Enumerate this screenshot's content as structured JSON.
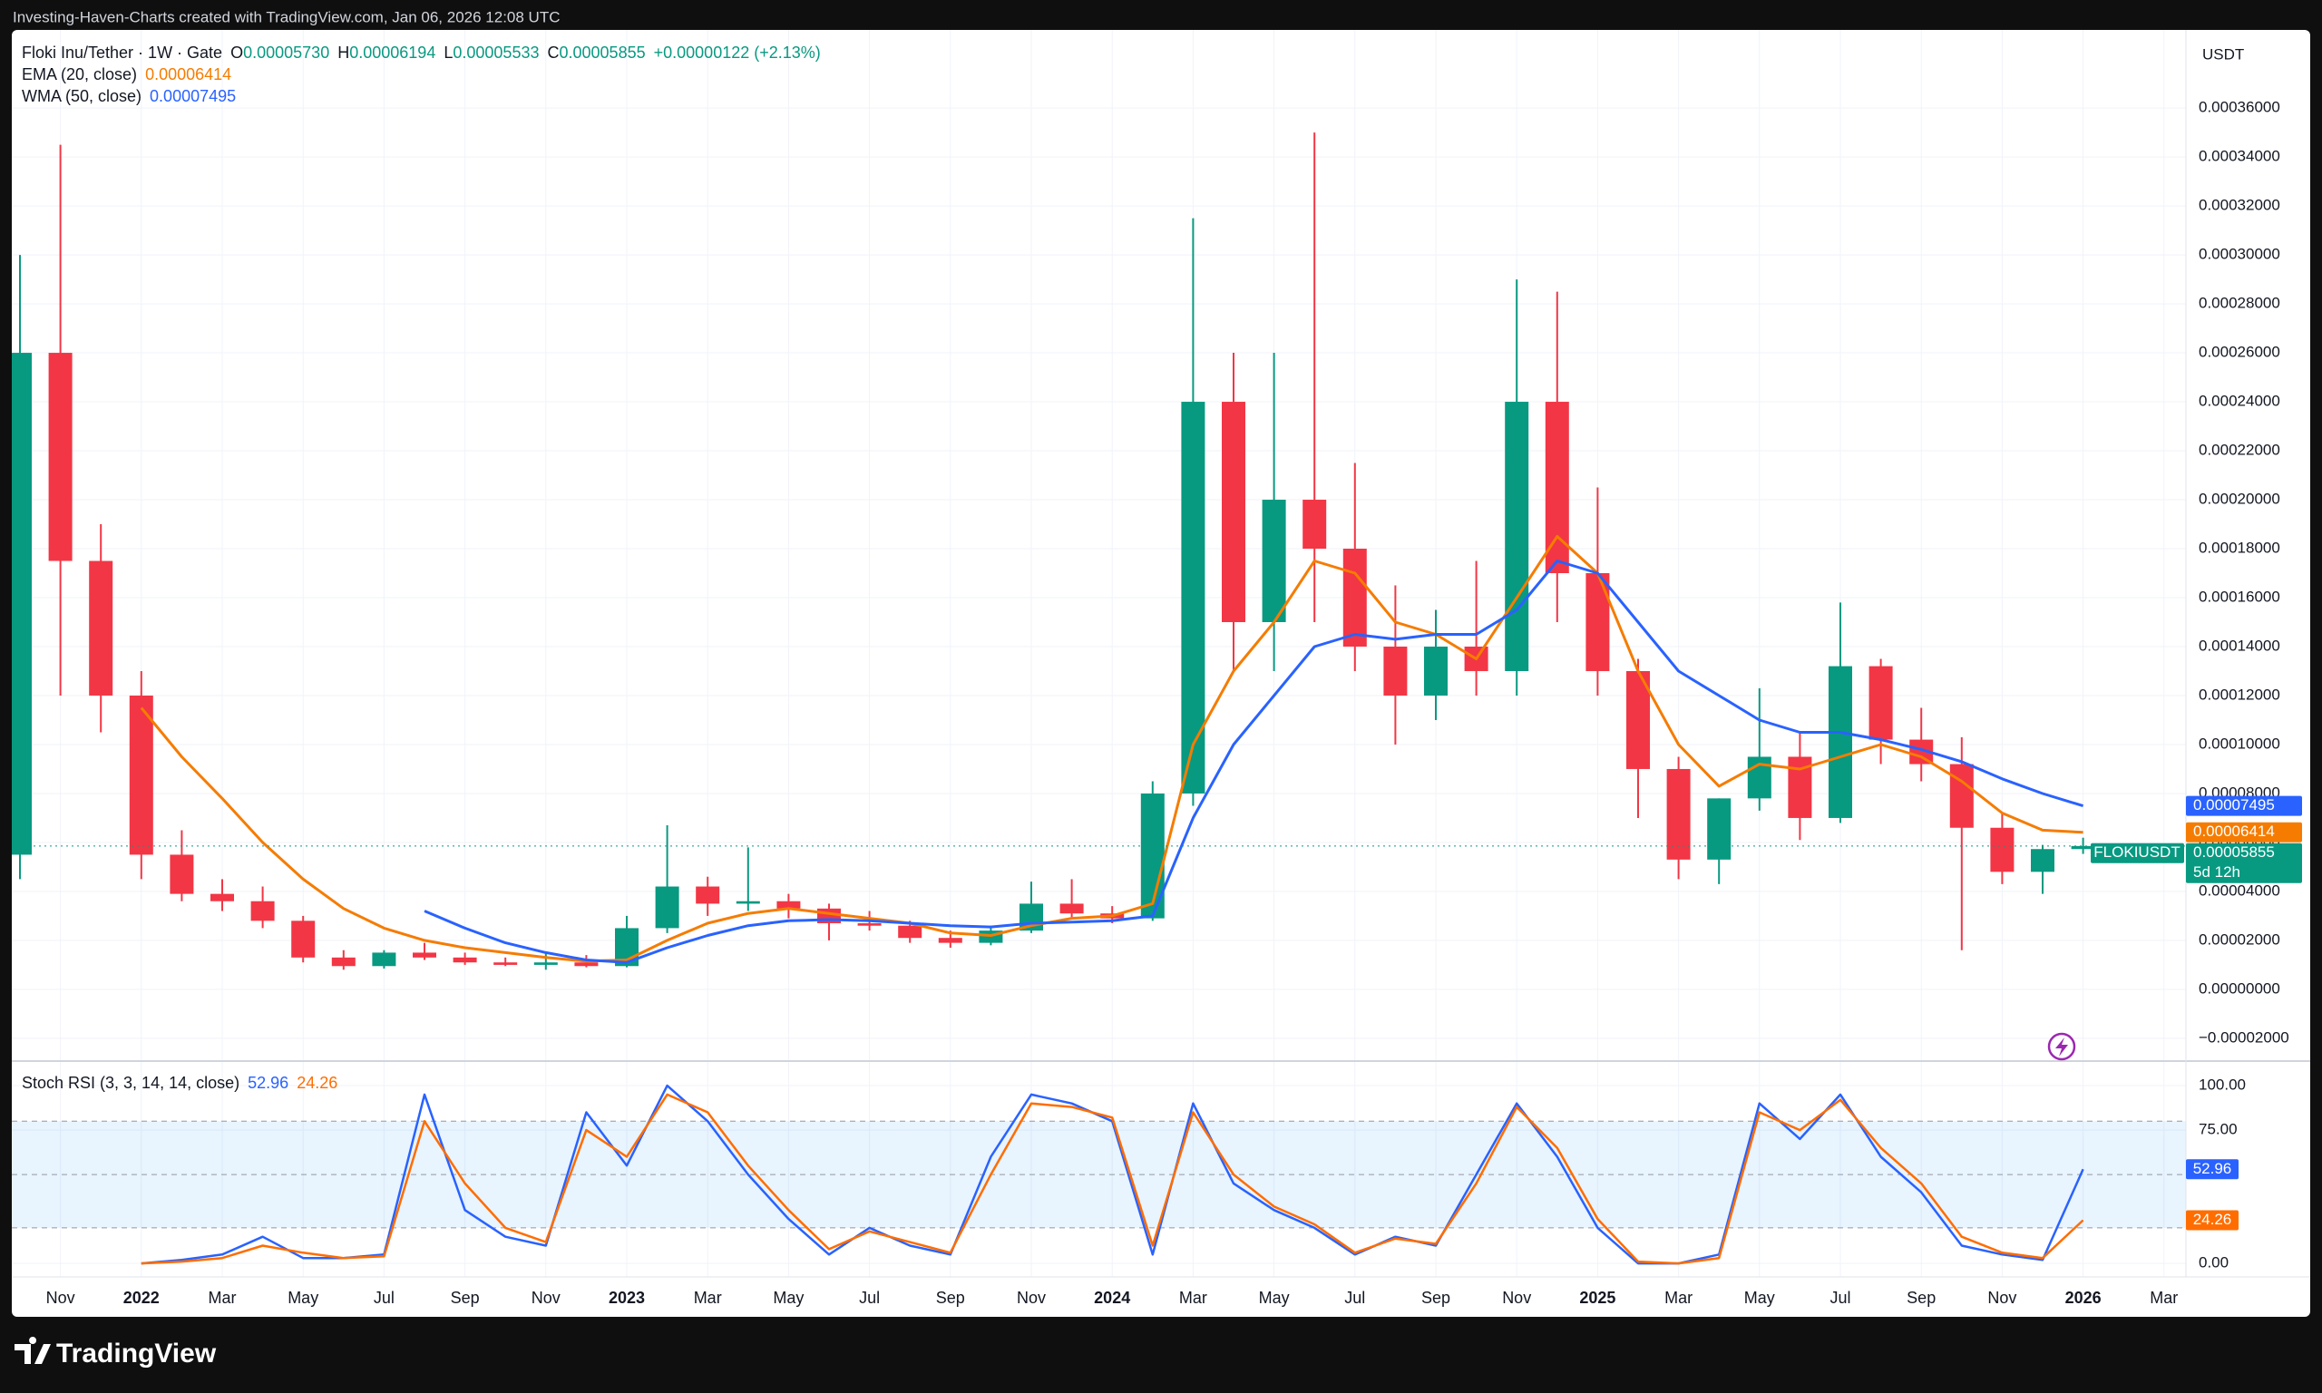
{
  "header": {
    "attribution": "Investing-Haven-Charts created with TradingView.com, Jan 06, 2026 12:08 UTC",
    "symbol": "Floki Inu/Tether · 1W · Gate",
    "ohlc": [
      {
        "label": "O",
        "value": "0.00005730"
      },
      {
        "label": "H",
        "value": "0.00006194"
      },
      {
        "label": "L",
        "value": "0.00005533"
      },
      {
        "label": "C",
        "value": "0.00005855"
      }
    ],
    "change": "+0.00000122 (+2.13%)"
  },
  "brand": "TradingView",
  "chart_data": [
    {
      "type": "candlestick",
      "currency": "USDT",
      "symbol_tag": "FLOKIUSDT",
      "countdown": "5d 12h",
      "up_color": "#089981",
      "down_color": "#f23645",
      "categories": [
        null,
        "Nov",
        null,
        "2022",
        null,
        "Mar",
        null,
        "May",
        null,
        "Jul",
        null,
        "Sep",
        null,
        "Nov",
        null,
        "2023",
        null,
        "Mar",
        null,
        "May",
        null,
        "Jul",
        null,
        "Sep",
        null,
        "Nov",
        null,
        "2024",
        null,
        "Mar",
        null,
        "May",
        null,
        "Jul",
        null,
        "Sep",
        null,
        "Nov",
        null,
        "2025",
        null,
        "Mar",
        null,
        "May",
        null,
        "Jul",
        null,
        "Sep",
        null,
        "Nov",
        null,
        "2026",
        null,
        "Mar",
        null
      ],
      "open": [
        5.5e-05,
        0.00026,
        0.000175,
        0.00012,
        5.5e-05,
        3.9e-05,
        3.6e-05,
        2.8e-05,
        1.3e-05,
        9.5e-06,
        1.5e-05,
        1.3e-05,
        1.1e-05,
        1e-05,
        1.1e-05,
        9.5e-06,
        2.5e-05,
        4.2e-05,
        3.5e-05,
        3.6e-05,
        3.3e-05,
        2.7e-05,
        2.6e-05,
        2.1e-05,
        1.9e-05,
        2.4e-05,
        3.5e-05,
        3.1e-05,
        2.9e-05,
        8e-05,
        0.00024,
        0.00015,
        0.0002,
        0.00018,
        0.00014,
        0.00012,
        0.00014,
        0.00013,
        0.00024,
        0.00017,
        0.00013,
        9e-05,
        5.3e-05,
        7.8e-05,
        9.5e-05,
        7e-05,
        0.000132,
        0.000102,
        9.2e-05,
        6.6e-05,
        4.8e-05,
        5.73e-05,
        null,
        null,
        null
      ],
      "high": [
        0.0003,
        0.000345,
        0.00019,
        0.00013,
        6.5e-05,
        4.5e-05,
        4.2e-05,
        3e-05,
        1.6e-05,
        1.6e-05,
        1.9e-05,
        1.5e-05,
        1.3e-05,
        1.5e-05,
        1.4e-05,
        3e-05,
        6.7e-05,
        4.6e-05,
        5.8e-05,
        3.9e-05,
        3.5e-05,
        3.2e-05,
        2.8e-05,
        2.4e-05,
        2.6e-05,
        4.4e-05,
        4.5e-05,
        3.4e-05,
        8.5e-05,
        0.000315,
        0.00026,
        0.00026,
        0.00035,
        0.000215,
        0.000165,
        0.000155,
        0.000175,
        0.00029,
        0.000285,
        0.000205,
        0.000135,
        9.5e-05,
        7.8e-05,
        0.000123,
        0.000105,
        0.000158,
        0.000135,
        0.000115,
        0.000103,
        7.2e-05,
        5.9e-05,
        6.194e-05,
        null,
        null,
        null
      ],
      "low": [
        4.5e-05,
        0.00012,
        0.000105,
        4.5e-05,
        3.6e-05,
        3.2e-05,
        2.5e-05,
        1.1e-05,
        8e-06,
        8.5e-06,
        1.2e-05,
        1e-05,
        9.5e-06,
        8e-06,
        9e-06,
        9e-06,
        2.3e-05,
        3e-05,
        3.2e-05,
        2.9e-05,
        2e-05,
        2.4e-05,
        1.9e-05,
        1.7e-05,
        1.8e-05,
        2.3e-05,
        2.9e-05,
        2.7e-05,
        2.8e-05,
        7.5e-05,
        0.00013,
        0.00013,
        0.00015,
        0.00013,
        0.0001,
        0.00011,
        0.00012,
        0.00012,
        0.00015,
        0.00012,
        7e-05,
        4.5e-05,
        4.3e-05,
        7.3e-05,
        6.1e-05,
        6.8e-05,
        9.2e-05,
        8.5e-05,
        1.6e-05,
        4.3e-05,
        3.9e-05,
        5.533e-05,
        null,
        null,
        null
      ],
      "close": [
        0.00026,
        0.000175,
        0.00012,
        5.5e-05,
        3.9e-05,
        3.6e-05,
        2.8e-05,
        1.3e-05,
        9.5e-06,
        1.5e-05,
        1.3e-05,
        1.1e-05,
        1e-05,
        1.1e-05,
        9.5e-06,
        2.5e-05,
        4.2e-05,
        3.5e-05,
        3.6e-05,
        3.3e-05,
        2.7e-05,
        2.6e-05,
        2.1e-05,
        1.9e-05,
        2.4e-05,
        3.5e-05,
        3.1e-05,
        2.9e-05,
        8e-05,
        0.00024,
        0.00015,
        0.0002,
        0.00018,
        0.00014,
        0.00012,
        0.00014,
        0.00013,
        0.00024,
        0.00017,
        0.00013,
        9e-05,
        5.3e-05,
        7.8e-05,
        9.5e-05,
        7e-05,
        0.000132,
        0.000102,
        9.2e-05,
        6.6e-05,
        4.8e-05,
        5.73e-05,
        5.855e-05,
        null,
        null,
        null
      ],
      "series": [
        {
          "name": "EMA (20, close)",
          "color": "#f57c00",
          "values": [
            null,
            null,
            null,
            0.000115,
            9.5e-05,
            7.8e-05,
            6e-05,
            4.5e-05,
            3.3e-05,
            2.5e-05,
            2e-05,
            1.7e-05,
            1.5e-05,
            1.3e-05,
            1.15e-05,
            1.2e-05,
            2e-05,
            2.7e-05,
            3.1e-05,
            3.3e-05,
            3.1e-05,
            2.9e-05,
            2.7e-05,
            2.3e-05,
            2.2e-05,
            2.6e-05,
            2.9e-05,
            3e-05,
            3.5e-05,
            0.0001,
            0.00013,
            0.00015,
            0.000175,
            0.00017,
            0.00015,
            0.000145,
            0.000135,
            0.00016,
            0.000185,
            0.00017,
            0.00013,
            0.0001,
            8.3e-05,
            9.2e-05,
            9e-05,
            9.5e-05,
            0.0001,
            9.5e-05,
            8.5e-05,
            7.2e-05,
            6.5e-05,
            6.414e-05,
            null,
            null,
            null
          ]
        },
        {
          "name": "WMA (50, close)",
          "color": "#2962ff",
          "values": [
            null,
            null,
            null,
            null,
            null,
            null,
            null,
            null,
            null,
            null,
            3.2e-05,
            2.5e-05,
            1.9e-05,
            1.5e-05,
            1.2e-05,
            1.1e-05,
            1.7e-05,
            2.2e-05,
            2.6e-05,
            2.8e-05,
            2.85e-05,
            2.8e-05,
            2.7e-05,
            2.6e-05,
            2.55e-05,
            2.7e-05,
            2.75e-05,
            2.8e-05,
            3e-05,
            7e-05,
            0.0001,
            0.00012,
            0.00014,
            0.000145,
            0.000143,
            0.000145,
            0.000145,
            0.000155,
            0.000175,
            0.00017,
            0.00015,
            0.00013,
            0.00012,
            0.00011,
            0.000105,
            0.000105,
            0.000102,
            9.8e-05,
            9.3e-05,
            8.6e-05,
            8e-05,
            7.495e-05,
            null,
            null,
            null
          ]
        }
      ],
      "ylim": [
        -2.93e-05,
        0.0003919
      ],
      "yticks": [
        {
          "value": -2e-05,
          "label": "−0.00002000"
        },
        {
          "value": 0,
          "label": "0.00000000"
        },
        {
          "value": 2e-05,
          "label": "0.00002000"
        },
        {
          "value": 4e-05,
          "label": "0.00004000"
        },
        {
          "value": 6e-05,
          "label": "0.00006000"
        },
        {
          "value": 8e-05,
          "label": "0.00008000"
        },
        {
          "value": 0.0001,
          "label": "0.00010000"
        },
        {
          "value": 0.00012,
          "label": "0.00012000"
        },
        {
          "value": 0.00014,
          "label": "0.00014000"
        },
        {
          "value": 0.00016,
          "label": "0.00016000"
        },
        {
          "value": 0.00018,
          "label": "0.00018000"
        },
        {
          "value": 0.0002,
          "label": "0.00020000"
        },
        {
          "value": 0.00022,
          "label": "0.00022000"
        },
        {
          "value": 0.00024,
          "label": "0.00024000"
        },
        {
          "value": 0.00026,
          "label": "0.00026000"
        },
        {
          "value": 0.00028,
          "label": "0.00028000"
        },
        {
          "value": 0.0003,
          "label": "0.00030000"
        },
        {
          "value": 0.00032,
          "label": "0.00032000"
        },
        {
          "value": 0.00034,
          "label": "0.00034000"
        },
        {
          "value": 0.00036,
          "label": "0.00036000"
        }
      ],
      "grid": true
    },
    {
      "type": "line",
      "title": "Stoch RSI (3, 3, 14, 14, close)",
      "series": [
        {
          "color": "#2962ff",
          "values": [
            null,
            null,
            null,
            0,
            2,
            5,
            15,
            3,
            3,
            5,
            95,
            30,
            15,
            10,
            85,
            55,
            100,
            80,
            50,
            25,
            5,
            20,
            10,
            5,
            60,
            95,
            90,
            80,
            5,
            90,
            45,
            30,
            20,
            5,
            15,
            10,
            50,
            90,
            60,
            20,
            0,
            0,
            5,
            90,
            70,
            95,
            60,
            40,
            10,
            5,
            2,
            52.96,
            null,
            null,
            null
          ]
        },
        {
          "color": "#ff6d00",
          "values": [
            null,
            null,
            null,
            0,
            1,
            3,
            10,
            6,
            3,
            4,
            80,
            45,
            20,
            12,
            75,
            60,
            95,
            85,
            55,
            30,
            8,
            18,
            12,
            6,
            50,
            90,
            88,
            82,
            10,
            85,
            50,
            32,
            22,
            6,
            14,
            11,
            45,
            88,
            65,
            25,
            1,
            0,
            3,
            85,
            75,
            92,
            65,
            45,
            15,
            6,
            3,
            24.26,
            null,
            null,
            null
          ]
        }
      ],
      "upper_band": 80,
      "middle_band": 50,
      "lower_band": 20,
      "band_color": "#2196f3",
      "ylim": [
        -7.6,
        113.8
      ],
      "yticks": [
        {
          "value": 0,
          "label": "0.00"
        },
        {
          "value": 75,
          "label": "75.00"
        },
        {
          "value": 100,
          "label": "100.00"
        }
      ],
      "grid": true
    }
  ]
}
